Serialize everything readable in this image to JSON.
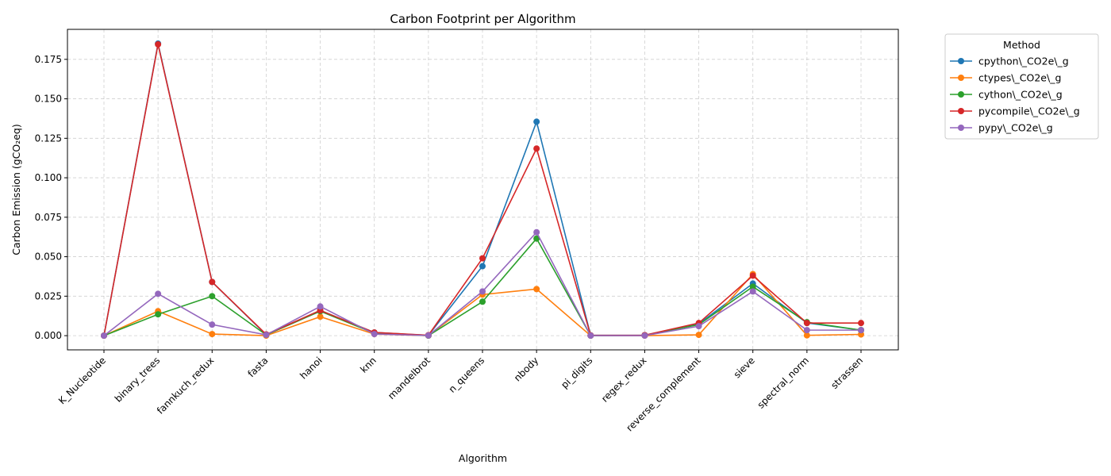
{
  "chart_data": {
    "type": "line",
    "title": "Carbon Footprint per Algorithm",
    "xlabel": "Algorithm",
    "ylabel": "Carbon Emission (gCO₂eq)",
    "ylim": [
      -0.009,
      0.194
    ],
    "yticks": [
      "0.000",
      "0.025",
      "0.050",
      "0.075",
      "0.100",
      "0.125",
      "0.150",
      "0.175"
    ],
    "grid": true,
    "legend": {
      "title": "Method",
      "placement": "outside-top-right"
    },
    "categories": [
      "K_Nucleotide",
      "binary_trees",
      "fannkuch_redux",
      "fasta",
      "hanoi",
      "knn",
      "mandelbrot",
      "n_queens",
      "nbody",
      "pi_digits",
      "regex_redux",
      "reverse_complement",
      "sieve",
      "spectral_norm",
      "strassen"
    ],
    "series": [
      {
        "name": "cpython\\_CO2e\\_g",
        "color": "#1f77b4",
        "values": [
          0.0,
          0.185,
          0.034,
          0.0005,
          0.016,
          0.002,
          0.0002,
          0.044,
          0.1355,
          0.0002,
          0.0003,
          0.0075,
          0.033,
          0.008,
          0.0035
        ]
      },
      {
        "name": "ctypes\\_CO2e\\_g",
        "color": "#ff7f0e",
        "values": [
          0.0,
          0.0155,
          0.001,
          0.0,
          0.012,
          0.001,
          0.0,
          0.026,
          0.0295,
          0.0,
          0.0,
          0.0005,
          0.039,
          0.0002,
          0.0008
        ]
      },
      {
        "name": "cython\\_CO2e\\_g",
        "color": "#2ca02c",
        "values": [
          0.0,
          0.0135,
          0.025,
          0.0005,
          0.0155,
          0.0015,
          0.0,
          0.0215,
          0.0615,
          0.0,
          0.0002,
          0.007,
          0.031,
          0.0085,
          0.0035
        ]
      },
      {
        "name": "pycompile\\_CO2e\\_g",
        "color": "#d62728",
        "values": [
          0.0,
          0.1845,
          0.034,
          0.0008,
          0.016,
          0.002,
          0.0003,
          0.049,
          0.1185,
          0.0002,
          0.0003,
          0.008,
          0.038,
          0.008,
          0.008
        ]
      },
      {
        "name": "pypy\\_CO2e\\_g",
        "color": "#9467bd",
        "values": [
          0.0,
          0.0265,
          0.007,
          0.0005,
          0.0185,
          0.001,
          0.0001,
          0.028,
          0.0655,
          0.0,
          0.0,
          0.006,
          0.028,
          0.0035,
          0.0035
        ]
      }
    ]
  }
}
